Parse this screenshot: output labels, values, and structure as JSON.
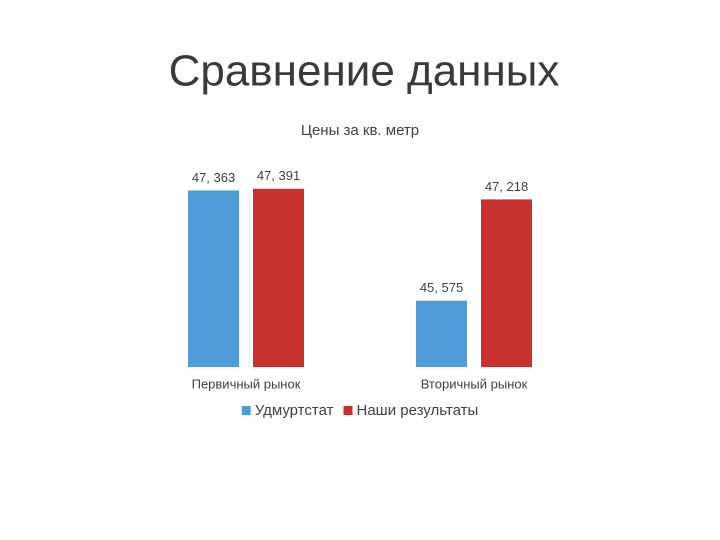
{
  "slide": {
    "title": "Сравнение данных"
  },
  "chart_data": {
    "type": "bar",
    "title": "Цены за кв. метр",
    "categories": [
      "Первичный рынок",
      "Вторичный рынок"
    ],
    "series": [
      {
        "name": "Удмуртстат",
        "color": "#509ad6",
        "values": [
          47363,
          45575
        ],
        "value_labels": [
          "47, 363",
          "45, 575"
        ]
      },
      {
        "name": "Наши результаты",
        "color": "#c8312e",
        "values": [
          47391,
          47218
        ],
        "value_labels": [
          "47, 391",
          "47, 218"
        ]
      }
    ],
    "ylim": [
      44500,
      47500
    ],
    "legend": "bottom"
  }
}
